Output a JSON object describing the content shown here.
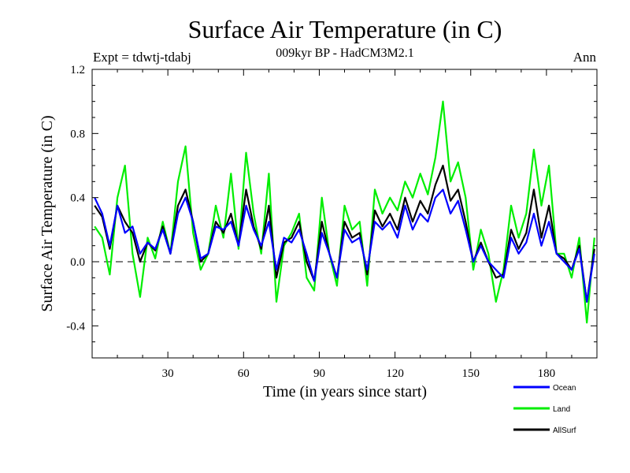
{
  "chart_data": {
    "type": "line",
    "title": "Surface Air Temperature (in C)",
    "subtitle": "009kyr BP - HadCM3M2.1",
    "experiment_label": "Expt = tdwtj-tdabj",
    "season_label": "Ann",
    "xlabel": "Time (in years since start)",
    "ylabel": "Surface Air Temperature (in C)",
    "xlim": [
      0,
      200
    ],
    "ylim": [
      -0.6,
      1.2
    ],
    "xticks": [
      30,
      60,
      90,
      120,
      150,
      180
    ],
    "yticks": [
      -0.4,
      0.0,
      0.4,
      0.8,
      1.2
    ],
    "ytick_labels": [
      "-0.4",
      "0.0",
      "0.4",
      "0.8",
      "1.2"
    ],
    "zero_line": "dashed",
    "legend_position": "bottom-right",
    "x": [
      1,
      4,
      7,
      10,
      13,
      16,
      19,
      22,
      25,
      28,
      31,
      34,
      37,
      40,
      43,
      46,
      49,
      52,
      55,
      58,
      61,
      64,
      67,
      70,
      73,
      76,
      79,
      82,
      85,
      88,
      91,
      94,
      97,
      100,
      103,
      106,
      109,
      112,
      115,
      118,
      121,
      124,
      127,
      130,
      133,
      136,
      139,
      142,
      145,
      148,
      151,
      154,
      157,
      160,
      163,
      166,
      169,
      172,
      175,
      178,
      181,
      184,
      187,
      190,
      193,
      196,
      199
    ],
    "series": [
      {
        "name": "Ocean",
        "color": "#0000ff",
        "values": [
          0.4,
          0.3,
          0.1,
          0.35,
          0.18,
          0.22,
          0.05,
          0.12,
          0.08,
          0.2,
          0.05,
          0.3,
          0.4,
          0.25,
          0.02,
          0.05,
          0.22,
          0.2,
          0.25,
          0.1,
          0.35,
          0.2,
          0.1,
          0.25,
          -0.05,
          0.15,
          0.12,
          0.2,
          0.05,
          -0.12,
          0.18,
          0.05,
          -0.1,
          0.2,
          0.12,
          0.15,
          -0.05,
          0.25,
          0.2,
          0.25,
          0.15,
          0.35,
          0.2,
          0.3,
          0.25,
          0.4,
          0.45,
          0.3,
          0.38,
          0.2,
          0.0,
          0.1,
          0.0,
          -0.05,
          -0.1,
          0.15,
          0.05,
          0.12,
          0.3,
          0.1,
          0.25,
          0.05,
          0.0,
          -0.05,
          0.08,
          -0.25,
          0.05
        ]
      },
      {
        "name": "Land",
        "color": "#00ee00",
        "values": [
          0.22,
          0.15,
          -0.08,
          0.4,
          0.6,
          0.05,
          -0.22,
          0.15,
          0.02,
          0.25,
          0.05,
          0.5,
          0.72,
          0.18,
          -0.05,
          0.05,
          0.35,
          0.15,
          0.55,
          0.08,
          0.68,
          0.3,
          0.05,
          0.55,
          -0.25,
          0.1,
          0.18,
          0.3,
          -0.1,
          -0.18,
          0.4,
          0.05,
          -0.15,
          0.35,
          0.2,
          0.25,
          -0.15,
          0.45,
          0.3,
          0.4,
          0.32,
          0.5,
          0.4,
          0.55,
          0.42,
          0.65,
          1.0,
          0.5,
          0.62,
          0.4,
          -0.05,
          0.2,
          0.05,
          -0.25,
          -0.05,
          0.35,
          0.15,
          0.3,
          0.7,
          0.35,
          0.6,
          0.05,
          0.05,
          -0.1,
          0.15,
          -0.38,
          0.15
        ]
      },
      {
        "name": "AllSurf",
        "color": "#000000",
        "values": [
          0.35,
          0.28,
          0.08,
          0.35,
          0.25,
          0.18,
          0.0,
          0.12,
          0.07,
          0.22,
          0.05,
          0.35,
          0.45,
          0.25,
          0.0,
          0.05,
          0.25,
          0.18,
          0.3,
          0.1,
          0.45,
          0.22,
          0.08,
          0.35,
          -0.1,
          0.12,
          0.15,
          0.25,
          0.0,
          -0.12,
          0.25,
          0.05,
          -0.1,
          0.25,
          0.15,
          0.18,
          -0.08,
          0.32,
          0.22,
          0.3,
          0.2,
          0.4,
          0.25,
          0.38,
          0.3,
          0.48,
          0.6,
          0.38,
          0.45,
          0.25,
          0.0,
          0.12,
          0.0,
          -0.1,
          -0.08,
          0.2,
          0.08,
          0.18,
          0.45,
          0.15,
          0.35,
          0.05,
          0.02,
          -0.05,
          0.1,
          -0.25,
          0.08
        ]
      }
    ]
  }
}
